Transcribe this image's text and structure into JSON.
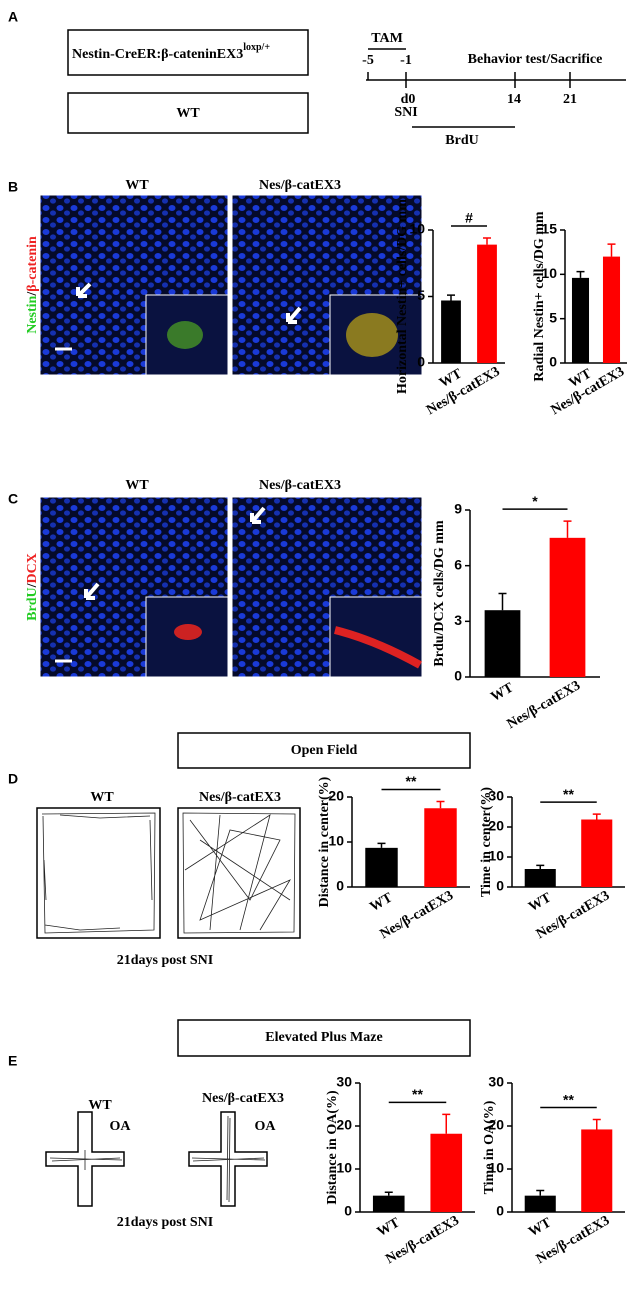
{
  "panel_labels": [
    "A",
    "B",
    "C",
    "D",
    "E"
  ],
  "schematic": {
    "genotype": "Nestin-CreER:β-cateninEX3",
    "genotype_sup": "loxp/+",
    "control": "WT"
  },
  "timeline": {
    "tam": "TAM",
    "days": [
      "-5",
      "-1",
      "d0",
      "14",
      "21"
    ],
    "sni": "SNI",
    "brdu": "BrdU",
    "end": "Behavior test/Sacrifice"
  },
  "micrographs_b": {
    "groups": [
      "WT",
      "Nes/β-catEX3"
    ],
    "stain": [
      "Nestin",
      "/",
      "β-catenin"
    ]
  },
  "micrographs_c": {
    "groups": [
      "WT",
      "Nes/β-catEX3"
    ],
    "stain": [
      "BrdU",
      "/",
      "DCX"
    ]
  },
  "open_field": {
    "title": "Open Field",
    "groups": [
      "WT",
      "Nes/β-catEX3"
    ],
    "caption": "21days post SNI"
  },
  "plus_maze": {
    "title": "Elevated Plus Maze",
    "groups": [
      "WT",
      "Nes/β-catEX3"
    ],
    "arms": [
      "OA",
      "OA"
    ],
    "caption": "21days post SNI"
  },
  "chart_data": [
    {
      "type": "bar",
      "y_label": "Horizontal Nestin+ cells/DG mm",
      "categories": [
        "WT",
        "Nes/β-catEX3"
      ],
      "values": [
        4.7,
        8.9
      ],
      "errors": [
        0.4,
        0.5
      ],
      "colors": [
        "#000000",
        "#ff0000"
      ],
      "ylim": [
        0,
        10
      ],
      "yticks": [
        0,
        5,
        10
      ],
      "annotation": "#"
    },
    {
      "type": "bar",
      "y_label": "Radial Nestin+ cells/DG mm",
      "categories": [
        "WT",
        "Nes/β-catEX3"
      ],
      "values": [
        9.6,
        12
      ],
      "errors": [
        0.7,
        1.4
      ],
      "colors": [
        "#000000",
        "#ff0000"
      ],
      "ylim": [
        0,
        15
      ],
      "yticks": [
        0,
        5,
        10,
        15
      ]
    },
    {
      "type": "bar",
      "y_label": "Brdu/DCX cells/DG mm",
      "categories": [
        "WT",
        "Nes/β-catEX3"
      ],
      "values": [
        3.6,
        7.5
      ],
      "errors": [
        0.9,
        0.9
      ],
      "colors": [
        "#000000",
        "#ff0000"
      ],
      "ylim": [
        0,
        9
      ],
      "yticks": [
        0,
        3,
        6,
        9
      ],
      "annotation": "*"
    },
    {
      "type": "bar",
      "y_label": "Distance in center(%)",
      "categories": [
        "WT",
        "Nes/β-catEX3"
      ],
      "values": [
        8.7,
        17.5
      ],
      "errors": [
        1,
        1.5
      ],
      "colors": [
        "#000000",
        "#ff0000"
      ],
      "ylim": [
        0,
        20
      ],
      "yticks": [
        0,
        10,
        20
      ],
      "annotation": "**"
    },
    {
      "type": "bar",
      "y_label": "Time in center(%)",
      "categories": [
        "WT",
        "Nes/β-catEX3"
      ],
      "values": [
        6,
        22.5
      ],
      "errors": [
        1.2,
        1.8
      ],
      "colors": [
        "#000000",
        "#ff0000"
      ],
      "ylim": [
        0,
        30
      ],
      "yticks": [
        0,
        10,
        20,
        30
      ],
      "annotation": "**"
    },
    {
      "type": "bar",
      "y_label": "Distance in OA(%)",
      "categories": [
        "WT",
        "Nes/β-catEX3"
      ],
      "values": [
        3.8,
        18.2
      ],
      "errors": [
        0.8,
        4.5
      ],
      "colors": [
        "#000000",
        "#ff0000"
      ],
      "ylim": [
        0,
        30
      ],
      "yticks": [
        0,
        10,
        20,
        30
      ],
      "annotation": "**"
    },
    {
      "type": "bar",
      "y_label": "Time in OA(%)",
      "categories": [
        "WT",
        "Nes/β-catEX3"
      ],
      "values": [
        3.8,
        19.2
      ],
      "errors": [
        1.2,
        2.3
      ],
      "colors": [
        "#000000",
        "#ff0000"
      ],
      "ylim": [
        0,
        30
      ],
      "yticks": [
        0,
        10,
        20,
        30
      ],
      "annotation": "**"
    }
  ]
}
